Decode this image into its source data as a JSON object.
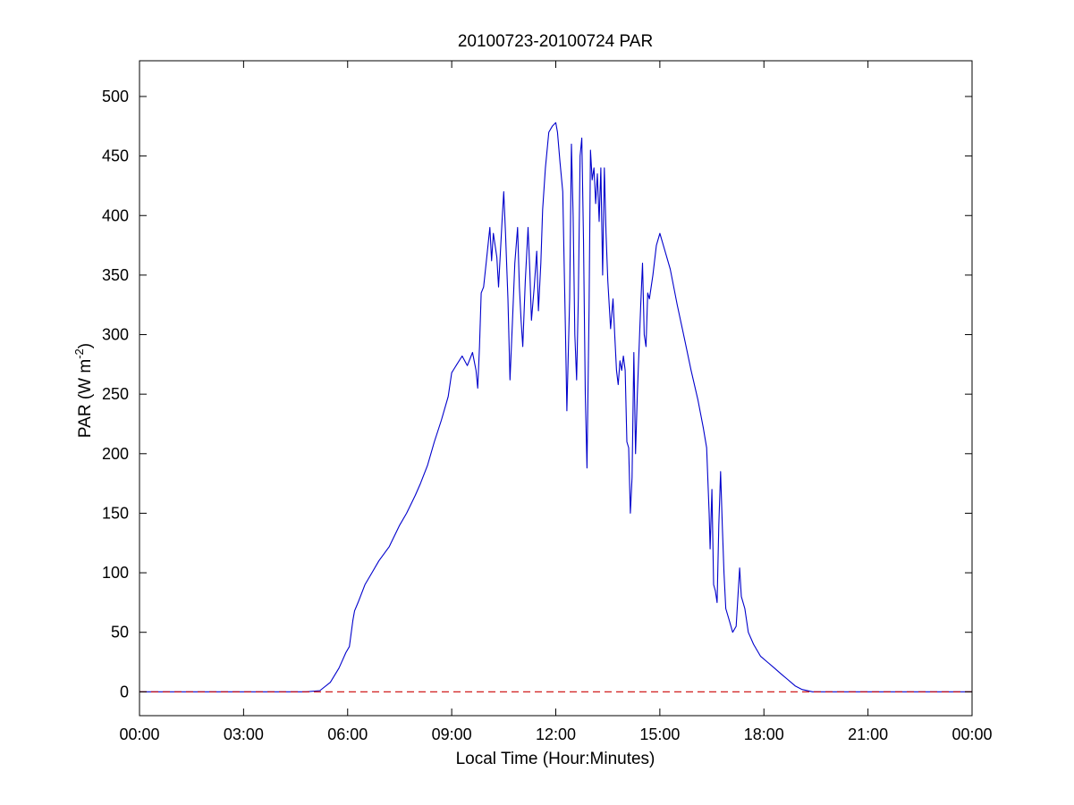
{
  "chart_data": {
    "type": "line",
    "title": "20100723-20100724 PAR",
    "xlabel": "Local Time (Hour:Minutes)",
    "ylabel": "PAR (W m",
    "ylabel_sup": "-2",
    "ylabel_close": ")",
    "xlim": [
      0,
      24
    ],
    "ylim": [
      -20,
      530
    ],
    "xticks": [
      0,
      3,
      6,
      9,
      12,
      15,
      18,
      21,
      24
    ],
    "xtick_labels": [
      "00:00",
      "03:00",
      "06:00",
      "09:00",
      "12:00",
      "15:00",
      "18:00",
      "21:00",
      "00:00"
    ],
    "yticks": [
      0,
      50,
      100,
      150,
      200,
      250,
      300,
      350,
      400,
      450,
      500
    ],
    "grid": false,
    "series": [
      {
        "color": "#0000cc",
        "style": "solid",
        "points": [
          [
            0,
            0
          ],
          [
            4.8,
            0
          ],
          [
            5.2,
            1
          ],
          [
            5.5,
            8
          ],
          [
            5.75,
            20
          ],
          [
            5.95,
            33
          ],
          [
            6.05,
            38
          ],
          [
            6.15,
            60
          ],
          [
            6.2,
            68
          ],
          [
            6.3,
            75
          ],
          [
            6.5,
            90
          ],
          [
            6.7,
            100
          ],
          [
            6.9,
            110
          ],
          [
            7.2,
            122
          ],
          [
            7.5,
            140
          ],
          [
            7.7,
            150
          ],
          [
            7.95,
            165
          ],
          [
            8.1,
            175
          ],
          [
            8.3,
            190
          ],
          [
            8.5,
            210
          ],
          [
            8.7,
            228
          ],
          [
            8.9,
            248
          ],
          [
            9.0,
            268
          ],
          [
            9.15,
            275
          ],
          [
            9.3,
            282
          ],
          [
            9.45,
            274
          ],
          [
            9.6,
            285
          ],
          [
            9.7,
            270
          ],
          [
            9.75,
            255
          ],
          [
            9.8,
            290
          ],
          [
            9.85,
            335
          ],
          [
            9.92,
            340
          ],
          [
            10.0,
            362
          ],
          [
            10.1,
            390
          ],
          [
            10.15,
            362
          ],
          [
            10.2,
            385
          ],
          [
            10.3,
            365
          ],
          [
            10.35,
            340
          ],
          [
            10.45,
            395
          ],
          [
            10.5,
            420
          ],
          [
            10.55,
            385
          ],
          [
            10.62,
            330
          ],
          [
            10.68,
            262
          ],
          [
            10.75,
            310
          ],
          [
            10.82,
            360
          ],
          [
            10.9,
            390
          ],
          [
            10.95,
            340
          ],
          [
            11.0,
            312
          ],
          [
            11.05,
            290
          ],
          [
            11.12,
            345
          ],
          [
            11.2,
            390
          ],
          [
            11.25,
            355
          ],
          [
            11.3,
            312
          ],
          [
            11.38,
            340
          ],
          [
            11.45,
            370
          ],
          [
            11.5,
            320
          ],
          [
            11.57,
            360
          ],
          [
            11.62,
            405
          ],
          [
            11.7,
            440
          ],
          [
            11.8,
            470
          ],
          [
            11.9,
            475
          ],
          [
            12.0,
            478
          ],
          [
            12.05,
            470
          ],
          [
            12.12,
            445
          ],
          [
            12.2,
            420
          ],
          [
            12.28,
            300
          ],
          [
            12.32,
            236
          ],
          [
            12.4,
            330
          ],
          [
            12.45,
            460
          ],
          [
            12.5,
            400
          ],
          [
            12.55,
            300
          ],
          [
            12.6,
            262
          ],
          [
            12.65,
            330
          ],
          [
            12.7,
            450
          ],
          [
            12.75,
            465
          ],
          [
            12.8,
            380
          ],
          [
            12.85,
            250
          ],
          [
            12.9,
            188
          ],
          [
            12.96,
            320
          ],
          [
            13.0,
            455
          ],
          [
            13.05,
            430
          ],
          [
            13.1,
            440
          ],
          [
            13.15,
            410
          ],
          [
            13.2,
            435
          ],
          [
            13.25,
            395
          ],
          [
            13.3,
            440
          ],
          [
            13.35,
            350
          ],
          [
            13.4,
            440
          ],
          [
            13.45,
            385
          ],
          [
            13.5,
            345
          ],
          [
            13.58,
            305
          ],
          [
            13.65,
            330
          ],
          [
            13.7,
            300
          ],
          [
            13.75,
            270
          ],
          [
            13.8,
            258
          ],
          [
            13.85,
            278
          ],
          [
            13.9,
            270
          ],
          [
            13.95,
            282
          ],
          [
            14.0,
            270
          ],
          [
            14.05,
            210
          ],
          [
            14.1,
            205
          ],
          [
            14.15,
            150
          ],
          [
            14.2,
            180
          ],
          [
            14.25,
            285
          ],
          [
            14.3,
            200
          ],
          [
            14.35,
            250
          ],
          [
            14.45,
            325
          ],
          [
            14.5,
            360
          ],
          [
            14.55,
            300
          ],
          [
            14.6,
            290
          ],
          [
            14.65,
            335
          ],
          [
            14.7,
            330
          ],
          [
            14.8,
            350
          ],
          [
            14.9,
            375
          ],
          [
            15.0,
            385
          ],
          [
            15.1,
            375
          ],
          [
            15.3,
            355
          ],
          [
            15.5,
            325
          ],
          [
            15.7,
            298
          ],
          [
            15.9,
            270
          ],
          [
            16.1,
            245
          ],
          [
            16.25,
            222
          ],
          [
            16.35,
            205
          ],
          [
            16.42,
            150
          ],
          [
            16.45,
            120
          ],
          [
            16.5,
            170
          ],
          [
            16.55,
            90
          ],
          [
            16.6,
            85
          ],
          [
            16.65,
            75
          ],
          [
            16.7,
            140
          ],
          [
            16.75,
            185
          ],
          [
            16.8,
            140
          ],
          [
            16.85,
            100
          ],
          [
            16.9,
            70
          ],
          [
            17.0,
            60
          ],
          [
            17.1,
            50
          ],
          [
            17.2,
            55
          ],
          [
            17.3,
            104
          ],
          [
            17.35,
            80
          ],
          [
            17.45,
            70
          ],
          [
            17.55,
            50
          ],
          [
            17.7,
            40
          ],
          [
            17.9,
            30
          ],
          [
            18.1,
            25
          ],
          [
            18.3,
            20
          ],
          [
            18.5,
            15
          ],
          [
            18.7,
            10
          ],
          [
            18.9,
            5
          ],
          [
            19.1,
            2
          ],
          [
            19.4,
            0
          ],
          [
            24,
            0
          ]
        ]
      },
      {
        "color": "#cc0000",
        "style": "dashed",
        "points": [
          [
            0,
            0
          ],
          [
            24,
            0
          ]
        ]
      }
    ]
  }
}
